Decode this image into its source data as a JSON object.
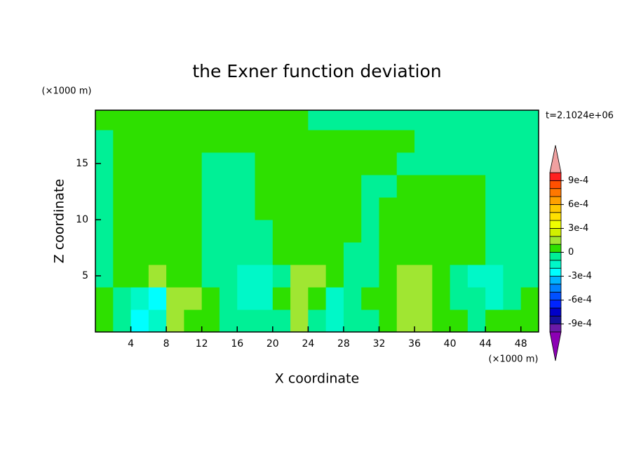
{
  "chart_data": {
    "type": "contour",
    "title": "the Exner function deviation",
    "xlabel": "X coordinate",
    "ylabel": "Z coordinate",
    "xunit": "(×1000 m)",
    "yunit": "(×1000 m)",
    "time_label": "t=2.1024e+06",
    "xlim": [
      0,
      50
    ],
    "ylim": [
      0,
      19.75
    ],
    "xticks": [
      4,
      8,
      12,
      16,
      20,
      24,
      28,
      32,
      36,
      40,
      44,
      48
    ],
    "yticks": [
      5,
      10,
      15
    ],
    "x": [
      1,
      3,
      5,
      7,
      9,
      11,
      13,
      15,
      17,
      19,
      21,
      23,
      25,
      27,
      29,
      31,
      33,
      35,
      37,
      39,
      41,
      43,
      45,
      47,
      49
    ],
    "y": [
      1,
      3,
      5,
      7,
      9,
      11,
      13,
      15,
      17,
      19
    ],
    "z": [
      [
        5e-05,
        -5e-05,
        -0.00025,
        -0.00015,
        0.00015,
        5e-05,
        5e-05,
        -5e-05,
        -5e-05,
        -5e-05,
        -5e-05,
        0.00015,
        -5e-05,
        -0.00015,
        -5e-05,
        -5e-05,
        5e-05,
        0.00015,
        0.00015,
        5e-05,
        5e-05,
        -5e-05,
        5e-05,
        5e-05,
        5e-05
      ],
      [
        5e-05,
        -5e-05,
        -0.00015,
        -0.00025,
        0.00015,
        0.00015,
        5e-05,
        -5e-05,
        -0.00015,
        -0.00015,
        5e-05,
        0.00015,
        5e-05,
        -0.00015,
        -5e-05,
        5e-05,
        5e-05,
        0.00015,
        0.00015,
        5e-05,
        -5e-05,
        -5e-05,
        -0.00015,
        -5e-05,
        5e-05
      ],
      [
        -5e-05,
        5e-05,
        5e-05,
        0.00015,
        5e-05,
        5e-05,
        -5e-05,
        -5e-05,
        -0.00015,
        -0.00015,
        -5e-05,
        0.00015,
        0.00015,
        5e-05,
        -5e-05,
        -5e-05,
        5e-05,
        0.00015,
        0.00015,
        5e-05,
        -5e-05,
        -0.00015,
        -0.00015,
        -5e-05,
        -5e-05
      ],
      [
        -5e-05,
        5e-05,
        5e-05,
        5e-05,
        5e-05,
        5e-05,
        -5e-05,
        -5e-05,
        -5e-05,
        -5e-05,
        5e-05,
        5e-05,
        5e-05,
        5e-05,
        -5e-05,
        -5e-05,
        5e-05,
        5e-05,
        5e-05,
        5e-05,
        5e-05,
        5e-05,
        -5e-05,
        -5e-05,
        -5e-05
      ],
      [
        -5e-05,
        5e-05,
        5e-05,
        5e-05,
        5e-05,
        5e-05,
        -5e-05,
        -5e-05,
        -5e-05,
        -5e-05,
        5e-05,
        5e-05,
        5e-05,
        5e-05,
        5e-05,
        -5e-05,
        5e-05,
        5e-05,
        5e-05,
        5e-05,
        5e-05,
        5e-05,
        -5e-05,
        -5e-05,
        -5e-05
      ],
      [
        -5e-05,
        5e-05,
        5e-05,
        5e-05,
        5e-05,
        5e-05,
        -5e-05,
        -5e-05,
        -5e-05,
        5e-05,
        5e-05,
        5e-05,
        5e-05,
        5e-05,
        5e-05,
        -5e-05,
        5e-05,
        5e-05,
        5e-05,
        5e-05,
        5e-05,
        5e-05,
        -5e-05,
        -5e-05,
        -5e-05
      ],
      [
        -5e-05,
        5e-05,
        5e-05,
        5e-05,
        5e-05,
        5e-05,
        -5e-05,
        -5e-05,
        -5e-05,
        5e-05,
        5e-05,
        5e-05,
        5e-05,
        5e-05,
        5e-05,
        -5e-05,
        -5e-05,
        5e-05,
        5e-05,
        5e-05,
        5e-05,
        5e-05,
        -5e-05,
        -5e-05,
        -5e-05
      ],
      [
        -5e-05,
        5e-05,
        5e-05,
        5e-05,
        5e-05,
        5e-05,
        -5e-05,
        -5e-05,
        -5e-05,
        5e-05,
        5e-05,
        5e-05,
        5e-05,
        5e-05,
        5e-05,
        5e-05,
        5e-05,
        -5e-05,
        -5e-05,
        -5e-05,
        -5e-05,
        -5e-05,
        -5e-05,
        -5e-05,
        -5e-05
      ],
      [
        -5e-05,
        5e-05,
        5e-05,
        5e-05,
        5e-05,
        5e-05,
        5e-05,
        5e-05,
        5e-05,
        5e-05,
        5e-05,
        5e-05,
        5e-05,
        5e-05,
        5e-05,
        5e-05,
        5e-05,
        5e-05,
        -5e-05,
        -5e-05,
        -5e-05,
        -5e-05,
        -5e-05,
        -5e-05,
        -5e-05
      ],
      [
        5e-05,
        5e-05,
        5e-05,
        5e-05,
        5e-05,
        5e-05,
        5e-05,
        5e-05,
        5e-05,
        5e-05,
        5e-05,
        5e-05,
        -5e-05,
        -5e-05,
        -5e-05,
        -5e-05,
        -5e-05,
        -5e-05,
        -5e-05,
        -5e-05,
        -5e-05,
        -5e-05,
        -5e-05,
        -5e-05,
        -5e-05
      ]
    ],
    "colorbar": {
      "levels": [
        -0.001,
        -0.0009,
        -0.0008,
        -0.0007,
        -0.0006,
        -0.0005,
        -0.0004,
        -0.0003,
        -0.0002,
        -0.0001,
        0,
        0.0001,
        0.0002,
        0.0003,
        0.0004,
        0.0005,
        0.0006,
        0.0007,
        0.0008,
        0.0009,
        0.001
      ],
      "colors": [
        "#8c00b4",
        "#6a1aa8",
        "#16109c",
        "#0000c8",
        "#0024ff",
        "#0050ff",
        "#0082ff",
        "#00b4ff",
        "#00ffff",
        "#00f8c8",
        "#00f096",
        "#2ee000",
        "#a0e632",
        "#d2f000",
        "#f0ff00",
        "#ffe000",
        "#ffc800",
        "#ffa000",
        "#ff7800",
        "#ff5000",
        "#ff2020",
        "#f0a0a0"
      ],
      "ticks": [
        {
          "value": -0.0009,
          "label": "-9e-4"
        },
        {
          "value": -0.0006,
          "label": "-6e-4"
        },
        {
          "value": -0.0003,
          "label": "-3e-4"
        },
        0,
        {
          "value": 0.0003,
          "label": "3e-4"
        },
        {
          "value": 0.0006,
          "label": "6e-4"
        },
        {
          "value": 0.0009,
          "label": "9e-4"
        }
      ]
    }
  }
}
